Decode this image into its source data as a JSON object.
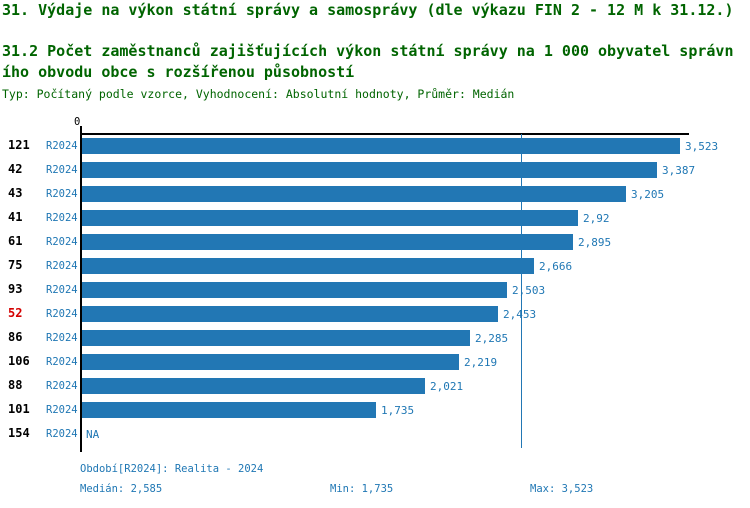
{
  "header": {
    "line1": "31. Výdaje na výkon státní správy a samosprávy (dle výkazu FIN 2 - 12 M k 31.12.)",
    "line2a": "31.2 Počet zaměstnanců zajišťujících výkon státní správy na 1 000 obyvatel správn",
    "line2b": "ího obvodu obce s rozšířenou působností",
    "meta": "Typ: Počítaný podle vzorce, Vyhodnocení: Absolutní hodnoty, Průměr: Medián"
  },
  "chart_data": {
    "type": "bar",
    "orientation": "horizontal",
    "title": "31.2 Počet zaměstnanců zajišťujících výkon státní správy na 1 000 obyvatel správního obvodu obce s rozšířenou působností",
    "zero_label": "0",
    "xlim": [
      0,
      3.57
    ],
    "grid": false,
    "legend_position": "none",
    "categories": [
      "121",
      "42",
      "43",
      "41",
      "61",
      "75",
      "93",
      "52",
      "86",
      "106",
      "88",
      "101",
      "154"
    ],
    "series": [
      {
        "name": "R2024",
        "values": [
          3.523,
          3.387,
          3.205,
          2.92,
          2.895,
          2.666,
          2.503,
          2.453,
          2.285,
          2.219,
          2.021,
          1.735,
          null
        ]
      }
    ],
    "value_labels": [
      "3,523",
      "3,387",
      "3,205",
      "2,92",
      "2,895",
      "2,666",
      "2,503",
      "2,453",
      "2,285",
      "2,219",
      "2,021",
      "1,735",
      "NA"
    ],
    "highlight_category": "52",
    "median_value": 2.585,
    "rows": [
      {
        "rank": "121",
        "period": "R2024",
        "value": 3.523,
        "label": "3,523",
        "highlight": false
      },
      {
        "rank": "42",
        "period": "R2024",
        "value": 3.387,
        "label": "3,387",
        "highlight": false
      },
      {
        "rank": "43",
        "period": "R2024",
        "value": 3.205,
        "label": "3,205",
        "highlight": false
      },
      {
        "rank": "41",
        "period": "R2024",
        "value": 2.92,
        "label": "2,92",
        "highlight": false
      },
      {
        "rank": "61",
        "period": "R2024",
        "value": 2.895,
        "label": "2,895",
        "highlight": false
      },
      {
        "rank": "75",
        "period": "R2024",
        "value": 2.666,
        "label": "2,666",
        "highlight": false
      },
      {
        "rank": "93",
        "period": "R2024",
        "value": 2.503,
        "label": "2,503",
        "highlight": false
      },
      {
        "rank": "52",
        "period": "R2024",
        "value": 2.453,
        "label": "2,453",
        "highlight": true
      },
      {
        "rank": "86",
        "period": "R2024",
        "value": 2.285,
        "label": "2,285",
        "highlight": false
      },
      {
        "rank": "106",
        "period": "R2024",
        "value": 2.219,
        "label": "2,219",
        "highlight": false
      },
      {
        "rank": "88",
        "period": "R2024",
        "value": 2.021,
        "label": "2,021",
        "highlight": false
      },
      {
        "rank": "101",
        "period": "R2024",
        "value": 1.735,
        "label": "1,735",
        "highlight": false
      },
      {
        "rank": "154",
        "period": "R2024",
        "value": null,
        "label": "NA",
        "highlight": false
      }
    ]
  },
  "footer": {
    "period": "Období[R2024]: Realita - 2024",
    "median": "Medián: 2,585",
    "min": "Min: 1,735",
    "max": "Max: 3,523"
  },
  "colors": {
    "title_green": "#006400",
    "bar_blue": "#2277b4",
    "text_blue": "#1f77b4",
    "highlight_red": "#d40000",
    "axis_black": "#000000"
  }
}
